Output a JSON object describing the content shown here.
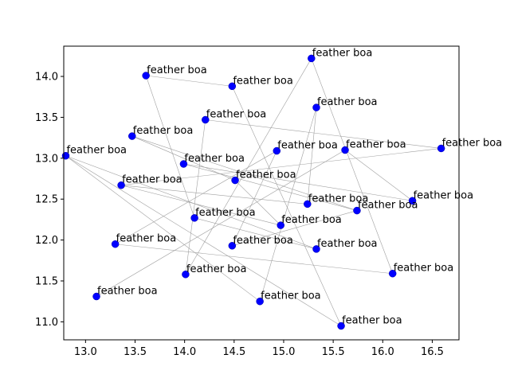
{
  "chart_data": {
    "type": "scatter",
    "title": "",
    "xlabel": "",
    "ylabel": "",
    "xlim": [
      12.78,
      16.77
    ],
    "ylim": [
      10.78,
      14.37
    ],
    "xticks": [
      13.0,
      13.5,
      14.0,
      14.5,
      15.0,
      15.5,
      16.0,
      16.5
    ],
    "yticks": [
      11.0,
      11.5,
      12.0,
      12.5,
      13.0,
      13.5,
      14.0
    ],
    "grid": false,
    "legend": "none",
    "marker_color": "#0000ff",
    "line_color": "#a0a0a0",
    "points": [
      {
        "label": "feather boa",
        "x": 12.8,
        "y": 13.03
      },
      {
        "label": "feather boa",
        "x": 13.11,
        "y": 11.31
      },
      {
        "label": "feather boa",
        "x": 13.3,
        "y": 11.95
      },
      {
        "label": "feather boa",
        "x": 13.36,
        "y": 12.67
      },
      {
        "label": "feather boa",
        "x": 13.47,
        "y": 13.27
      },
      {
        "label": "feather boa",
        "x": 13.61,
        "y": 14.01
      },
      {
        "label": "feather boa",
        "x": 13.99,
        "y": 12.93
      },
      {
        "label": "feather boa",
        "x": 14.01,
        "y": 11.58
      },
      {
        "label": "feather boa",
        "x": 14.1,
        "y": 12.27
      },
      {
        "label": "feather boa",
        "x": 14.21,
        "y": 13.47
      },
      {
        "label": "feather boa",
        "x": 14.48,
        "y": 11.93
      },
      {
        "label": "feather boa",
        "x": 14.48,
        "y": 13.88
      },
      {
        "label": "feather boa",
        "x": 14.51,
        "y": 12.73
      },
      {
        "label": "feather boa",
        "x": 14.76,
        "y": 11.25
      },
      {
        "label": "feather boa",
        "x": 14.93,
        "y": 13.09
      },
      {
        "label": "feather boa",
        "x": 14.97,
        "y": 12.18
      },
      {
        "label": "feather boa",
        "x": 15.24,
        "y": 12.44
      },
      {
        "label": "feather boa",
        "x": 15.28,
        "y": 14.22
      },
      {
        "label": "feather boa",
        "x": 15.33,
        "y": 11.89
      },
      {
        "label": "feather boa",
        "x": 15.33,
        "y": 13.62
      },
      {
        "label": "feather boa",
        "x": 15.58,
        "y": 10.95
      },
      {
        "label": "feather boa",
        "x": 15.62,
        "y": 13.1
      },
      {
        "label": "feather boa",
        "x": 15.74,
        "y": 12.36
      },
      {
        "label": "feather boa",
        "x": 16.1,
        "y": 11.59
      },
      {
        "label": "feather boa",
        "x": 16.3,
        "y": 12.48
      },
      {
        "label": "feather boa",
        "x": 16.59,
        "y": 13.12
      }
    ],
    "connections": [
      [
        0,
        20
      ],
      [
        0,
        13
      ],
      [
        0,
        18
      ],
      [
        1,
        21
      ],
      [
        2,
        23
      ],
      [
        2,
        14
      ],
      [
        3,
        16
      ],
      [
        3,
        25
      ],
      [
        4,
        12
      ],
      [
        4,
        22
      ],
      [
        5,
        8
      ],
      [
        5,
        11
      ],
      [
        6,
        24
      ],
      [
        6,
        22
      ],
      [
        7,
        9
      ],
      [
        7,
        17
      ],
      [
        8,
        18
      ],
      [
        9,
        25
      ],
      [
        10,
        14
      ],
      [
        11,
        20
      ],
      [
        13,
        19
      ],
      [
        15,
        12
      ],
      [
        16,
        19
      ],
      [
        17,
        23
      ],
      [
        10,
        22
      ],
      [
        3,
        15
      ],
      [
        24,
        21
      ]
    ]
  }
}
